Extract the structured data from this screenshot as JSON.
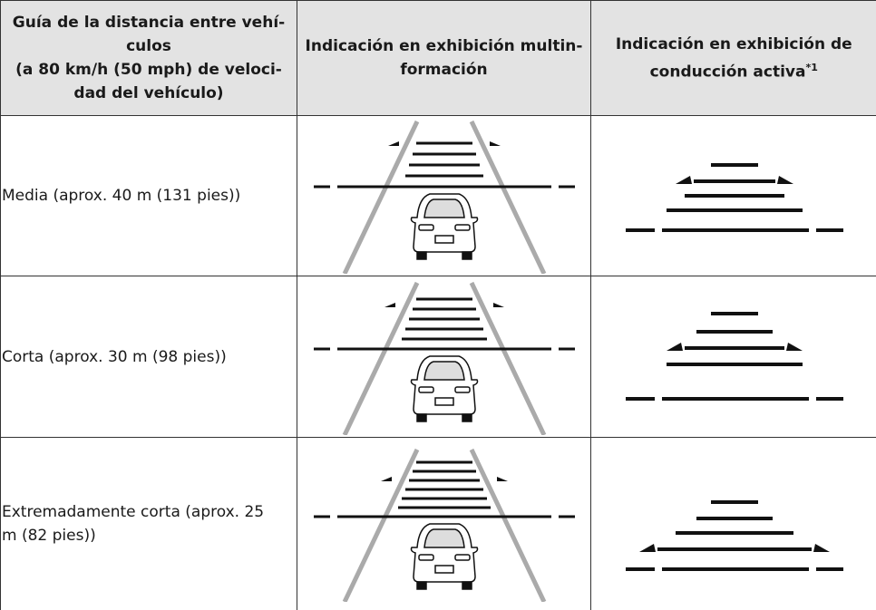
{
  "table": {
    "header": [
      {
        "lines": [
          "Guía de la distancia entre vehí-",
          "culos",
          "(a 80 km/h (50 mph) de veloci-",
          "dad del vehículo)"
        ]
      },
      {
        "lines": [
          "Indicación en exhibición multin-",
          "formación"
        ]
      },
      {
        "lines": [
          "Indicación en exhibición de",
          "conducción activa"
        ],
        "footnote_ref": "*1"
      }
    ],
    "rows": [
      "Media (aprox. 40 m (131 pies))",
      "Corta (aprox. 30 m (98 pies))",
      "Extremadamente corta (aprox. 25 m (82 pies))"
    ]
  }
}
